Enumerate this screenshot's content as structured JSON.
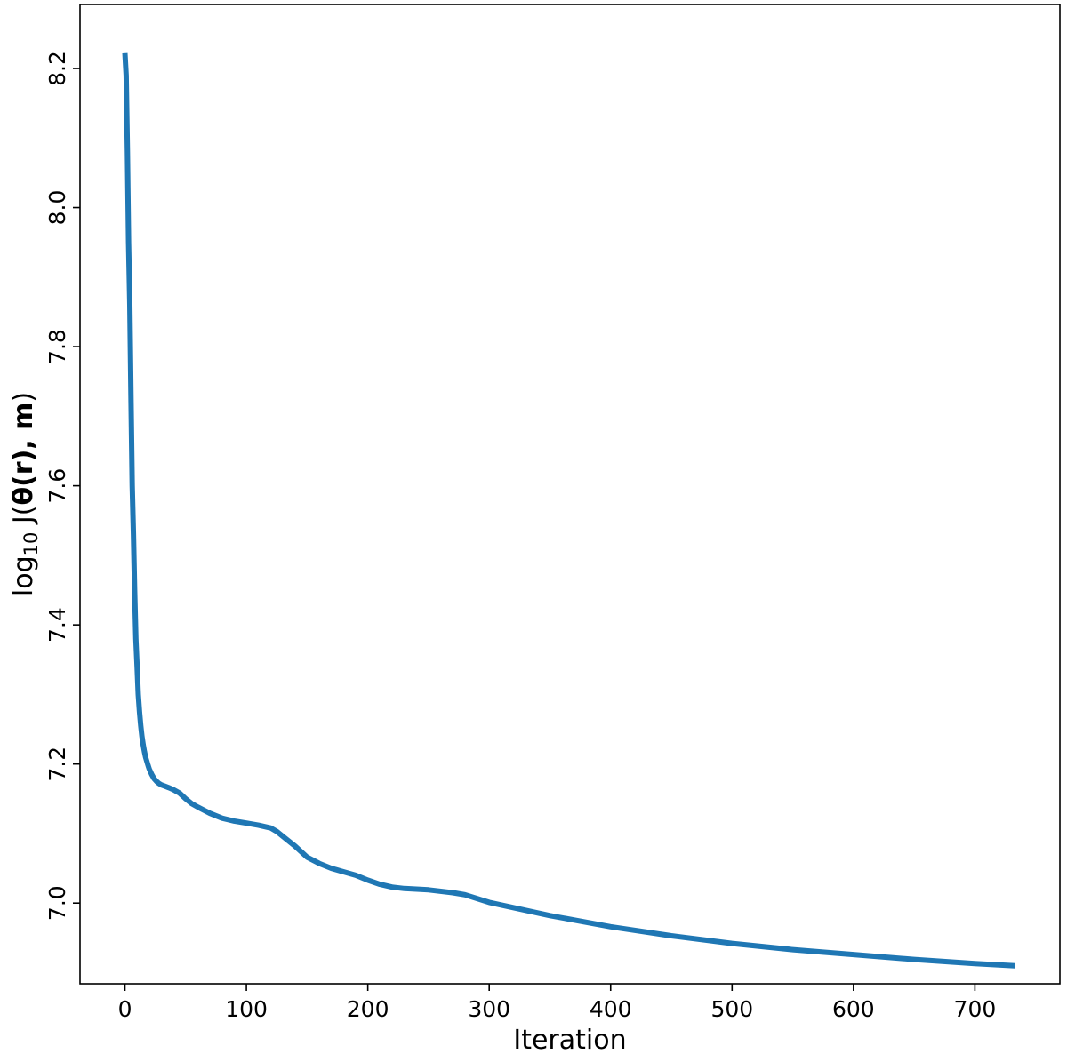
{
  "chart_data": {
    "type": "line",
    "title": "",
    "xlabel": "Iteration",
    "ylabel": {
      "prefix": "log",
      "subscript": "10",
      "function": " J(",
      "bold_args": "θ(r), m",
      "suffix": ")"
    },
    "xlim": [
      -37,
      770
    ],
    "ylim": [
      6.884,
      8.292
    ],
    "xticks": [
      0,
      100,
      200,
      300,
      400,
      500,
      600,
      700
    ],
    "yticks": [
      7.0,
      7.2,
      7.4,
      7.6,
      7.8,
      8.0,
      8.2
    ],
    "ytick_labels": [
      "7.0",
      "7.2",
      "7.4",
      "7.6",
      "7.8",
      "8.0",
      "8.2"
    ],
    "grid": false,
    "legend": "none",
    "series": [
      {
        "color": "#1f77b4",
        "x": [
          0,
          1,
          2,
          3,
          4,
          5,
          6,
          7,
          8,
          9,
          10,
          11,
          12,
          13,
          14,
          15,
          16,
          17,
          18,
          19,
          20,
          22,
          24,
          26,
          28,
          30,
          33,
          36,
          40,
          45,
          50,
          55,
          60,
          70,
          80,
          90,
          100,
          110,
          120,
          125,
          130,
          140,
          150,
          160,
          170,
          180,
          190,
          200,
          210,
          220,
          230,
          250,
          270,
          280,
          300,
          350,
          400,
          450,
          500,
          550,
          600,
          650,
          700,
          733
        ],
        "y": [
          8.222,
          8.19,
          8.08,
          7.95,
          7.86,
          7.72,
          7.6,
          7.53,
          7.45,
          7.38,
          7.34,
          7.3,
          7.275,
          7.255,
          7.24,
          7.228,
          7.218,
          7.21,
          7.204,
          7.198,
          7.193,
          7.185,
          7.179,
          7.175,
          7.172,
          7.17,
          7.168,
          7.166,
          7.163,
          7.158,
          7.15,
          7.143,
          7.138,
          7.129,
          7.122,
          7.118,
          7.115,
          7.112,
          7.108,
          7.103,
          7.096,
          7.082,
          7.066,
          7.057,
          7.05,
          7.045,
          7.04,
          7.033,
          7.027,
          7.023,
          7.021,
          7.019,
          7.015,
          7.012,
          7.001,
          6.982,
          6.966,
          6.953,
          6.942,
          6.933,
          6.926,
          6.919,
          6.913,
          6.91
        ]
      }
    ]
  }
}
